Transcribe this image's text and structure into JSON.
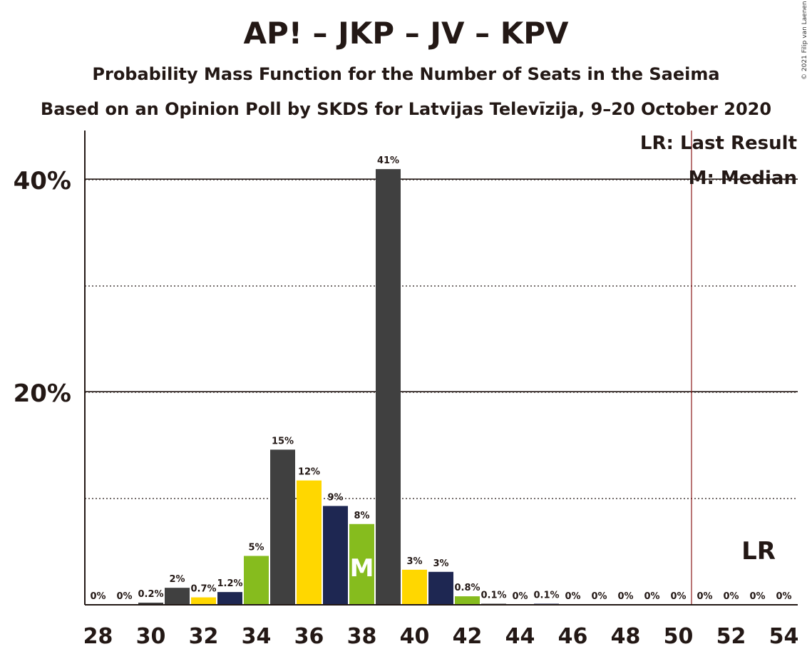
{
  "title": "AP! – JKP – JV – KPV",
  "subtitle1": "Probability Mass Function for the Number of Seats in the Saeima",
  "subtitle2": "Based on an Opinion Poll by SKDS for Latvijas Televīzija, 9–20 October 2020",
  "copyright": "© 2021 Filip van Laenen",
  "legend": {
    "lr": "LR: Last Result",
    "m": "M: Median"
  },
  "lr_marker": "LR",
  "median_marker": "M",
  "colors": {
    "dark": "#404040",
    "yellow": "#FFD700",
    "navy": "#1E2752",
    "green": "#86BC1E",
    "lr_line": "#8B1A1A",
    "axis": "#231815"
  },
  "chart_data": {
    "type": "bar",
    "x": [
      28,
      29,
      30,
      31,
      32,
      33,
      34,
      35,
      36,
      37,
      38,
      39,
      40,
      41,
      42,
      43,
      44,
      45,
      46,
      47,
      48,
      49,
      50,
      51,
      52,
      53,
      54
    ],
    "values": [
      0,
      0,
      0.2,
      1.6,
      0.7,
      1.2,
      4.6,
      14.6,
      11.7,
      9.3,
      7.6,
      41,
      3.3,
      3.1,
      0.8,
      0.1,
      0,
      0.1,
      0,
      0,
      0,
      0,
      0,
      0,
      0,
      0,
      0
    ],
    "labels": [
      "0%",
      "0%",
      "0.2%",
      "2%",
      "0.7%",
      "1.2%",
      "5%",
      "15%",
      "12%",
      "9%",
      "8%",
      "41%",
      "3%",
      "3%",
      "0.8%",
      "0.1%",
      "0%",
      "0.1%",
      "0%",
      "0%",
      "0%",
      "0%",
      "0%",
      "0%",
      "0%",
      "0%",
      "0%"
    ],
    "bar_colors": [
      "dark",
      "dark",
      "dark",
      "dark",
      "yellow",
      "navy",
      "green",
      "dark",
      "yellow",
      "navy",
      "green",
      "dark",
      "yellow",
      "navy",
      "green",
      "dark",
      "yellow",
      "navy",
      "green",
      "dark",
      "yellow",
      "navy",
      "green",
      "dark",
      "yellow",
      "navy",
      "green"
    ],
    "x_ticks": [
      "28",
      "30",
      "32",
      "34",
      "36",
      "38",
      "40",
      "42",
      "44",
      "46",
      "48",
      "50",
      "52",
      "54"
    ],
    "y_ticks": [
      "20%",
      "40%"
    ],
    "ylim": [
      0,
      44
    ],
    "major_grid": [
      20,
      40
    ],
    "minor_grid": [
      10,
      30
    ],
    "median": 38,
    "last_result": 50.5
  }
}
